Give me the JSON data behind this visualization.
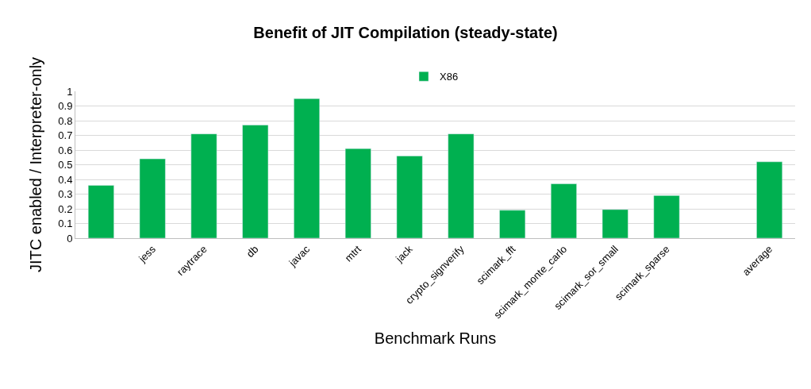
{
  "chart_data": {
    "type": "bar",
    "title": "Benefit of JIT Compilation (steady-state)",
    "xlabel": "Benchmark Runs",
    "ylabel": "JITC enabled / Interpreter-only",
    "categories": [
      null,
      "jess",
      "raytrace",
      "db",
      "javac",
      "mtrt",
      "jack",
      "crypto_signverify",
      "scimark_fft",
      "scimark_monte_carlo",
      "scimark_sor_small",
      "scimark_sparse",
      null,
      "average"
    ],
    "series": [
      {
        "name": "X86",
        "color": "#00b050",
        "values": [
          0.36,
          0.54,
          0.71,
          0.77,
          0.95,
          0.61,
          0.56,
          0.71,
          0.19,
          0.37,
          0.195,
          0.29,
          null,
          0.52
        ]
      }
    ],
    "ylim": [
      0,
      1
    ],
    "yticks": [
      0,
      0.1,
      0.2,
      0.3,
      0.4,
      0.5,
      0.6,
      0.7,
      0.8,
      0.9,
      1
    ],
    "grid": "y",
    "legend": "top"
  }
}
